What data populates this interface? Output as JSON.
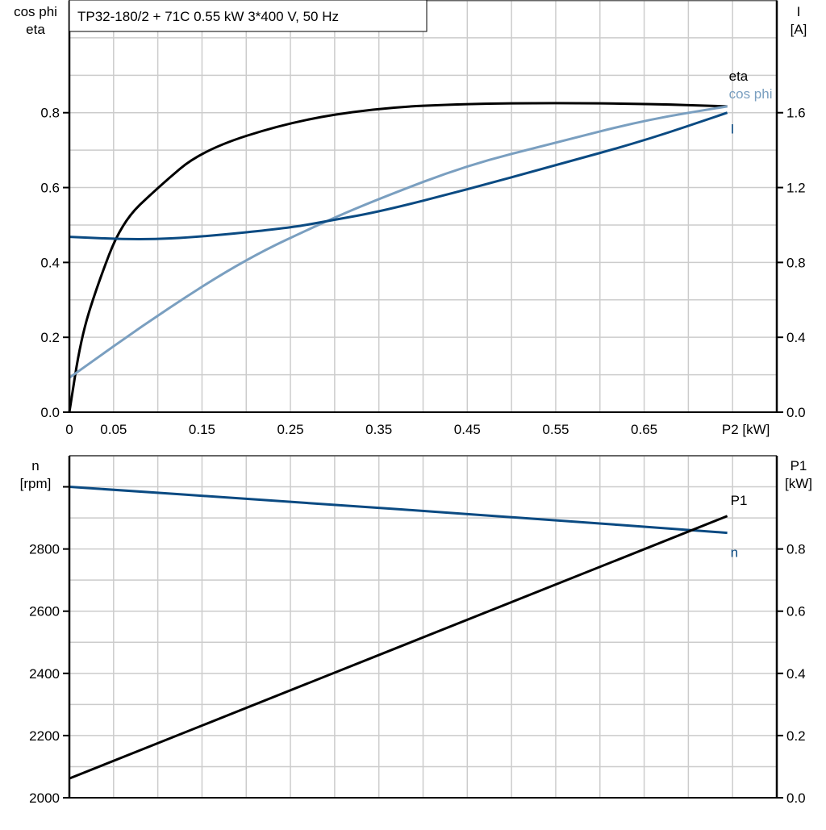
{
  "title": "TP32-180/2 + 71C   0.55 kW   3*400 V, 50 Hz",
  "colors": {
    "eta": "#000000",
    "cos_phi": "#7a9fc0",
    "I": "#0a4a82",
    "n": "#0a4a82",
    "P1": "#000000",
    "grid": "#cccccc"
  },
  "chart_data": [
    {
      "type": "line",
      "left_axis_label": [
        "cos phi",
        "eta"
      ],
      "right_axis_label": [
        "I",
        "[A]"
      ],
      "xlabel": "P2 [kW]",
      "xlim": [
        0,
        0.8
      ],
      "ylim_left": [
        0,
        1.1
      ],
      "ylim_right": [
        0,
        2.2
      ],
      "x_ticks": [
        "0",
        "0.05",
        "0.15",
        "0.25",
        "0.35",
        "0.45",
        "0.55",
        "0.65"
      ],
      "x_tick_values": [
        0,
        0.05,
        0.15,
        0.25,
        0.35,
        0.45,
        0.55,
        0.65
      ],
      "y_ticks_left": [
        "0.0",
        "0.2",
        "0.4",
        "0.6",
        "0.8"
      ],
      "y_ticks_right": [
        "0.0",
        "0.4",
        "0.8",
        "1.2",
        "1.6"
      ],
      "grid": true,
      "series": [
        {
          "name": "eta",
          "axis": "left",
          "color_key": "eta",
          "x": [
            0,
            0.013,
            0.031,
            0.059,
            0.1,
            0.15,
            0.25,
            0.35,
            0.45,
            0.55,
            0.65,
            0.744
          ],
          "y": [
            0,
            0.196,
            0.335,
            0.507,
            0.6,
            0.7,
            0.776,
            0.813,
            0.824,
            0.826,
            0.824,
            0.817
          ]
        },
        {
          "name": "cos phi",
          "axis": "left",
          "color_key": "cos_phi",
          "x": [
            0,
            0.1,
            0.2,
            0.29,
            0.35,
            0.45,
            0.55,
            0.65,
            0.744
          ],
          "y": [
            0.092,
            0.26,
            0.41,
            0.51,
            0.57,
            0.66,
            0.72,
            0.78,
            0.817
          ]
        },
        {
          "name": "I",
          "axis": "right",
          "color_key": "I",
          "x": [
            0,
            0.08,
            0.15,
            0.25,
            0.29,
            0.35,
            0.45,
            0.55,
            0.65,
            0.744
          ],
          "y": [
            0.937,
            0.92,
            0.937,
            0.985,
            1.02,
            1.07,
            1.19,
            1.32,
            1.45,
            1.6
          ]
        }
      ]
    },
    {
      "type": "line",
      "left_axis_label": [
        "n",
        "[rpm]"
      ],
      "right_axis_label": [
        "P1",
        "[kW]"
      ],
      "xlim": [
        0,
        0.8
      ],
      "ylim_left": [
        2000,
        3100
      ],
      "ylim_right": [
        0,
        1.1
      ],
      "y_ticks_left": [
        "2000",
        "2200",
        "2400",
        "2600",
        "2800"
      ],
      "y_ticks_right": [
        "0.0",
        "0.2",
        "0.4",
        "0.6",
        "0.8"
      ],
      "grid": true,
      "series": [
        {
          "name": "n",
          "axis": "left",
          "color_key": "n",
          "x": [
            0,
            0.25,
            0.5,
            0.744
          ],
          "y": [
            3000,
            2952,
            2903,
            2852
          ]
        },
        {
          "name": "P1",
          "axis": "right",
          "color_key": "P1",
          "x": [
            0,
            0.744
          ],
          "y": [
            0.062,
            0.906
          ]
        }
      ]
    }
  ]
}
